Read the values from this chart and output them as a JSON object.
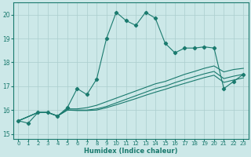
{
  "xlabel": "Humidex (Indice chaleur)",
  "xlim": [
    -0.5,
    23.5
  ],
  "ylim": [
    14.8,
    20.5
  ],
  "xticks": [
    0,
    1,
    2,
    3,
    4,
    5,
    6,
    7,
    8,
    9,
    10,
    11,
    12,
    13,
    14,
    15,
    16,
    17,
    18,
    19,
    20,
    21,
    22,
    23
  ],
  "yticks": [
    15,
    16,
    17,
    18,
    19,
    20
  ],
  "bg_color": "#cce8e8",
  "line_color": "#1a7a6e",
  "grid_color": "#aacece",
  "lines": [
    {
      "x": [
        0,
        1,
        2,
        3,
        4,
        5,
        6,
        7,
        8,
        9,
        10,
        11,
        12,
        13,
        14,
        15,
        16,
        17,
        18,
        19,
        20,
        21,
        22,
        23
      ],
      "y": [
        15.55,
        15.45,
        15.9,
        15.9,
        15.75,
        16.1,
        16.9,
        16.65,
        17.3,
        19.0,
        20.1,
        19.75,
        19.55,
        20.1,
        19.85,
        18.8,
        18.4,
        18.6,
        18.6,
        18.65,
        18.6,
        16.9,
        17.2,
        17.5
      ],
      "marker": true
    },
    {
      "x": [
        0,
        2,
        3,
        4,
        5,
        6,
        7,
        8,
        9,
        10,
        11,
        12,
        13,
        14,
        15,
        16,
        17,
        18,
        19,
        20,
        21,
        22,
        23
      ],
      "y": [
        15.55,
        15.9,
        15.9,
        15.75,
        16.05,
        16.05,
        16.1,
        16.2,
        16.35,
        16.5,
        16.65,
        16.8,
        16.95,
        17.1,
        17.2,
        17.35,
        17.5,
        17.62,
        17.75,
        17.85,
        17.6,
        17.7,
        17.75
      ],
      "marker": false
    },
    {
      "x": [
        0,
        2,
        3,
        4,
        5,
        6,
        7,
        8,
        9,
        10,
        11,
        12,
        13,
        14,
        15,
        16,
        17,
        18,
        19,
        20,
        21,
        22,
        23
      ],
      "y": [
        15.55,
        15.9,
        15.9,
        15.75,
        16.0,
        16.0,
        16.0,
        16.05,
        16.15,
        16.3,
        16.45,
        16.6,
        16.75,
        16.9,
        17.0,
        17.15,
        17.28,
        17.4,
        17.52,
        17.62,
        17.32,
        17.42,
        17.5
      ],
      "marker": false
    },
    {
      "x": [
        0,
        2,
        3,
        4,
        5,
        6,
        7,
        8,
        9,
        10,
        11,
        12,
        13,
        14,
        15,
        16,
        17,
        18,
        19,
        20,
        21,
        22,
        23
      ],
      "y": [
        15.55,
        15.9,
        15.9,
        15.75,
        16.0,
        15.98,
        15.98,
        16.0,
        16.1,
        16.22,
        16.35,
        16.48,
        16.62,
        16.75,
        16.87,
        17.0,
        17.12,
        17.24,
        17.36,
        17.46,
        17.16,
        17.26,
        17.35
      ],
      "marker": false
    }
  ]
}
